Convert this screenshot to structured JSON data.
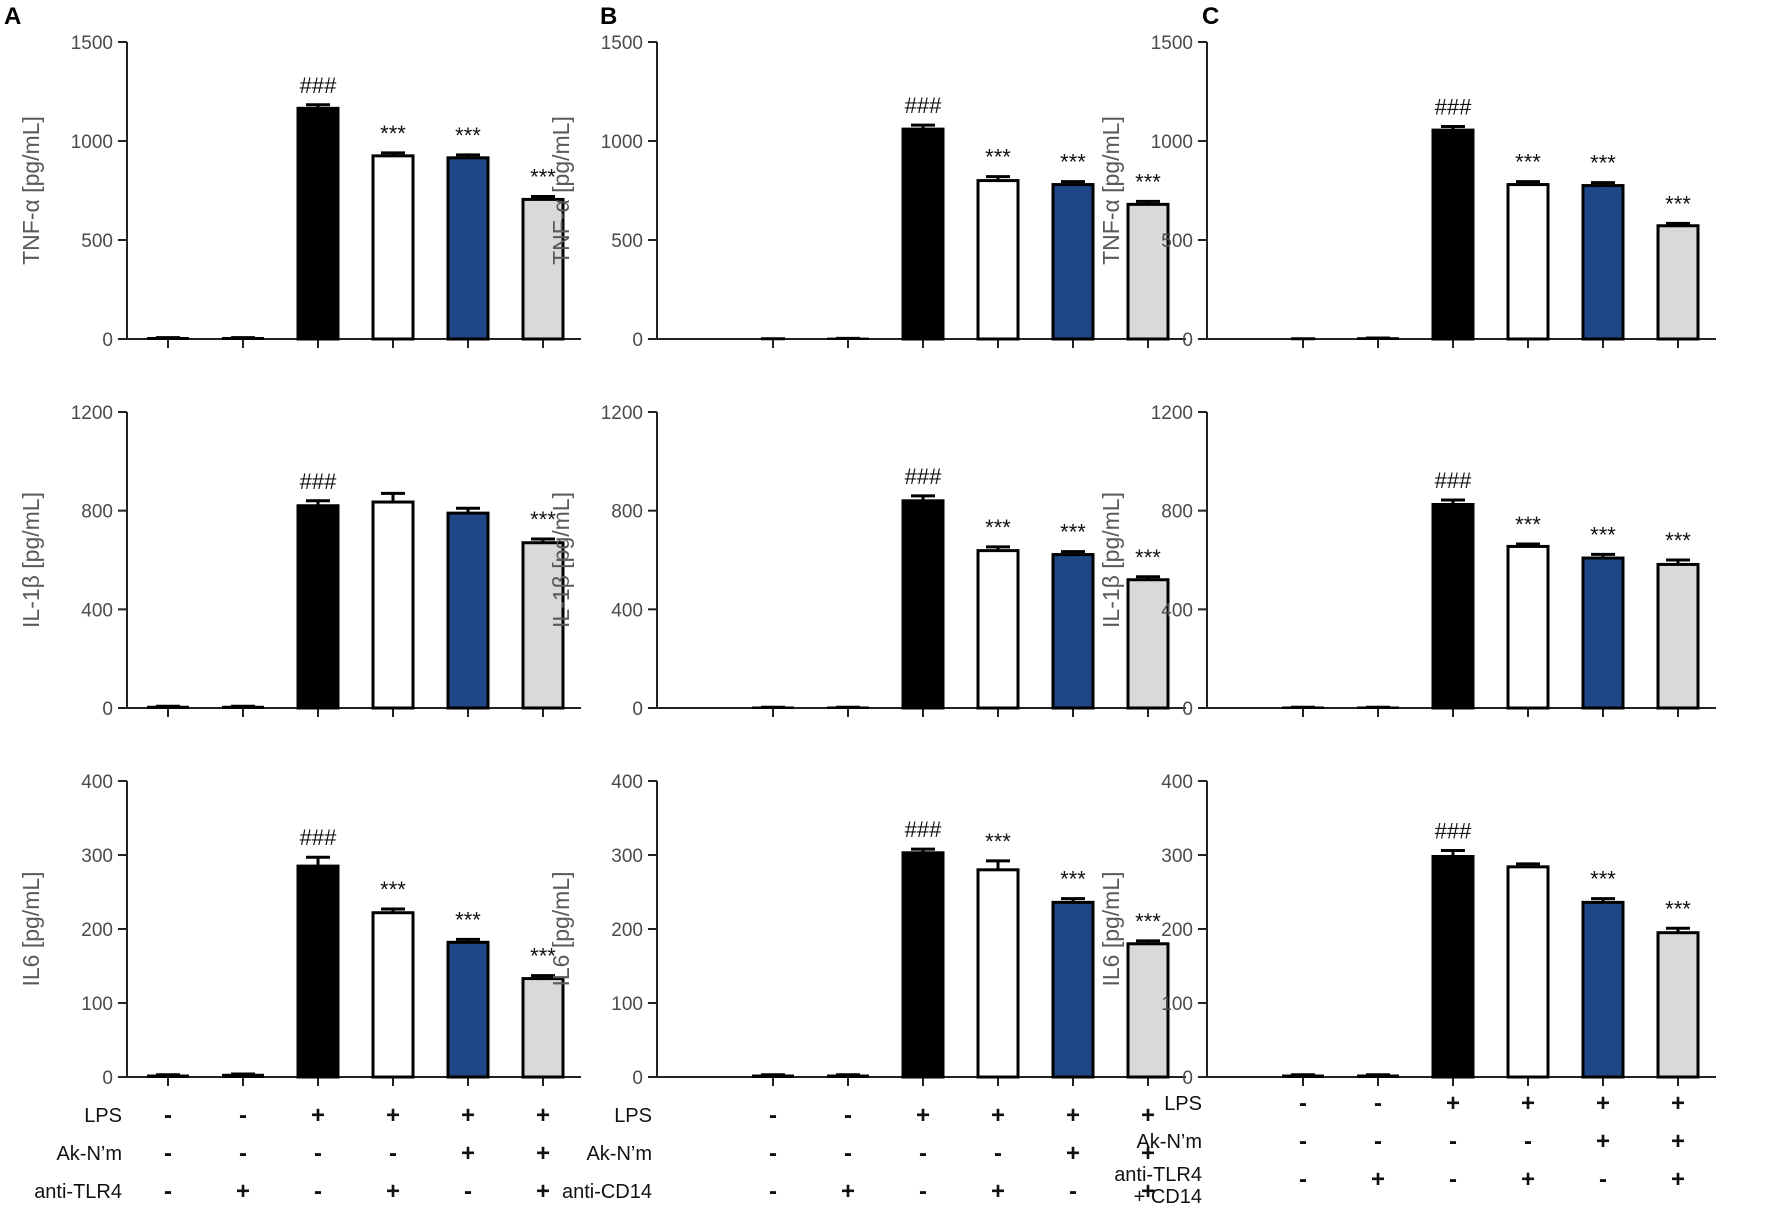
{
  "figure": {
    "colors": [
      "#000000",
      "#ffffff",
      "#1f4788",
      "#d9d9d9"
    ]
  },
  "chart_data": [
    {
      "panel": "A",
      "row": 0,
      "type": "bar",
      "ylabel": "TNF-α [pg/mL]",
      "ylim": [
        0,
        1500
      ],
      "yticks": [
        0,
        500,
        1000,
        1500
      ],
      "values": [
        5,
        5,
        1165,
        925,
        915,
        705
      ],
      "errors": [
        2,
        2,
        18,
        15,
        15,
        15
      ],
      "annotations": [
        "",
        "",
        "###",
        "***",
        "***",
        "***"
      ]
    },
    {
      "panel": "A",
      "row": 1,
      "type": "bar",
      "ylabel": "IL-1β [pg/mL]",
      "ylim": [
        0,
        1200
      ],
      "yticks": [
        0,
        400,
        800,
        1200
      ],
      "values": [
        5,
        5,
        820,
        835,
        790,
        670
      ],
      "errors": [
        2,
        2,
        20,
        35,
        20,
        15
      ],
      "annotations": [
        "",
        "",
        "###",
        "",
        "",
        "***"
      ]
    },
    {
      "panel": "A",
      "row": 2,
      "type": "bar",
      "ylabel": "IL6 [pg/mL]",
      "ylim": [
        0,
        400
      ],
      "yticks": [
        0,
        100,
        200,
        300,
        400
      ],
      "values": [
        2,
        3,
        285,
        222,
        182,
        133
      ],
      "errors": [
        1,
        1,
        12,
        5,
        4,
        4
      ],
      "annotations": [
        "",
        "",
        "###",
        "***",
        "***",
        "***"
      ]
    },
    {
      "panel": "B",
      "row": 0,
      "type": "bar",
      "ylabel": "TNF-α [pg/mL]",
      "ylim": [
        0,
        1500
      ],
      "yticks": [
        0,
        500,
        1000,
        1500
      ],
      "values": [
        0,
        2,
        1060,
        800,
        780,
        680
      ],
      "errors": [
        1,
        1,
        20,
        20,
        15,
        15
      ],
      "annotations": [
        "",
        "",
        "###",
        "***",
        "***",
        "***"
      ]
    },
    {
      "panel": "B",
      "row": 1,
      "type": "bar",
      "ylabel": "IL-1β [pg/mL]",
      "ylim": [
        0,
        1200
      ],
      "yticks": [
        0,
        400,
        800,
        1200
      ],
      "values": [
        2,
        2,
        840,
        638,
        622,
        520
      ],
      "errors": [
        1,
        1,
        20,
        15,
        12,
        12
      ],
      "annotations": [
        "",
        "",
        "###",
        "***",
        "***",
        "***"
      ]
    },
    {
      "panel": "B",
      "row": 2,
      "type": "bar",
      "ylabel": "IL6 [pg/mL]",
      "ylim": [
        0,
        400
      ],
      "yticks": [
        0,
        100,
        200,
        300,
        400
      ],
      "values": [
        2,
        2,
        303,
        280,
        236,
        180
      ],
      "errors": [
        1,
        1,
        5,
        12,
        5,
        4
      ],
      "annotations": [
        "",
        "",
        "###",
        "***",
        "***",
        "***"
      ]
    },
    {
      "panel": "C",
      "row": 0,
      "type": "bar",
      "ylabel": "TNF-α [pg/mL]",
      "ylim": [
        0,
        1500
      ],
      "yticks": [
        0,
        500,
        1000,
        1500
      ],
      "values": [
        0,
        4,
        1055,
        780,
        775,
        572
      ],
      "errors": [
        1,
        1,
        18,
        15,
        15,
        12
      ],
      "annotations": [
        "",
        "",
        "###",
        "***",
        "***",
        "***"
      ]
    },
    {
      "panel": "C",
      "row": 1,
      "type": "bar",
      "ylabel": "IL-1β [pg/mL]",
      "ylim": [
        0,
        1200
      ],
      "yticks": [
        0,
        400,
        800,
        1200
      ],
      "values": [
        2,
        2,
        825,
        655,
        608,
        582
      ],
      "errors": [
        1,
        1,
        18,
        10,
        15,
        18
      ],
      "annotations": [
        "",
        "",
        "###",
        "***",
        "***",
        "***"
      ]
    },
    {
      "panel": "C",
      "row": 2,
      "type": "bar",
      "ylabel": "IL6 [pg/mL]",
      "ylim": [
        0,
        400
      ],
      "yticks": [
        0,
        100,
        200,
        300,
        400
      ],
      "values": [
        2,
        2,
        298,
        284,
        236,
        195
      ],
      "errors": [
        1,
        1,
        8,
        4,
        5,
        6
      ],
      "annotations": [
        "",
        "",
        "###",
        "",
        "***",
        "***"
      ]
    }
  ],
  "panels": [
    {
      "letter": "A",
      "conditions": [
        {
          "label": "LPS",
          "signs": [
            "-",
            "-",
            "+",
            "+",
            "+",
            "+"
          ]
        },
        {
          "label": "Ak-N’m",
          "signs": [
            "-",
            "-",
            "-",
            "-",
            "+",
            "+"
          ]
        },
        {
          "label": "anti-TLR4",
          "signs": [
            "-",
            "+",
            "-",
            "+",
            "-",
            "+"
          ]
        }
      ]
    },
    {
      "letter": "B",
      "conditions": [
        {
          "label": "LPS",
          "signs": [
            "-",
            "-",
            "+",
            "+",
            "+",
            "+"
          ]
        },
        {
          "label": "Ak-N’m",
          "signs": [
            "-",
            "-",
            "-",
            "-",
            "+",
            "+"
          ]
        },
        {
          "label": "anti-CD14",
          "signs": [
            "-",
            "+",
            "-",
            "+",
            "-",
            "+"
          ]
        }
      ]
    },
    {
      "letter": "C",
      "conditions": [
        {
          "label": "LPS",
          "signs": [
            "-",
            "-",
            "+",
            "+",
            "+",
            "+"
          ]
        },
        {
          "label": "Ak-N’m",
          "signs": [
            "-",
            "-",
            "-",
            "-",
            "+",
            "+"
          ]
        },
        {
          "label": "anti-TLR4\n+ CD14",
          "signs": [
            "-",
            "+",
            "-",
            "+",
            "-",
            "+"
          ]
        }
      ]
    }
  ]
}
